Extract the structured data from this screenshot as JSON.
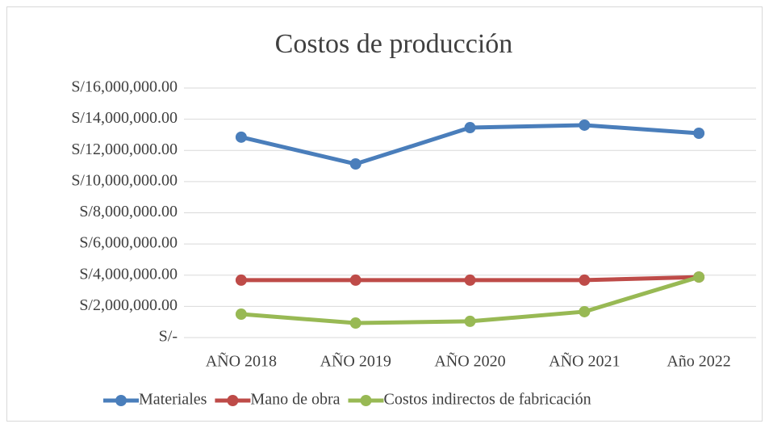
{
  "chart_data": {
    "type": "line",
    "title": "Costos de producción",
    "categories": [
      "AÑO 2018",
      "AÑO 2019",
      "AÑO 2020",
      "AÑO 2021",
      "Año 2022"
    ],
    "series": [
      {
        "name": "Materiales",
        "color": "#4a7ebb",
        "values": [
          12850000,
          11130000,
          13460000,
          13620000,
          13100000
        ]
      },
      {
        "name": "Mano de obra",
        "color": "#be4b48",
        "values": [
          3680000,
          3680000,
          3680000,
          3680000,
          3880000
        ]
      },
      {
        "name": "Costos indirectos de fabricación",
        "color": "#98b954",
        "values": [
          1500000,
          930000,
          1040000,
          1660000,
          3880000
        ]
      }
    ],
    "ylim": [
      0,
      16000000
    ],
    "yticks": [
      {
        "value": 0,
        "label": "S/-"
      },
      {
        "value": 2000000,
        "label": "S/2,000,000.00"
      },
      {
        "value": 4000000,
        "label": "S/4,000,000.00"
      },
      {
        "value": 6000000,
        "label": "S/6,000,000.00"
      },
      {
        "value": 8000000,
        "label": "S/8,000,000.00"
      },
      {
        "value": 10000000,
        "label": "S/10,000,000.00"
      },
      {
        "value": 12000000,
        "label": "S/12,000,000.00"
      },
      {
        "value": 14000000,
        "label": "S/14,000,000.00"
      },
      {
        "value": 16000000,
        "label": "S/16,000,000.00"
      }
    ],
    "grid": true,
    "legend": "bottom"
  }
}
